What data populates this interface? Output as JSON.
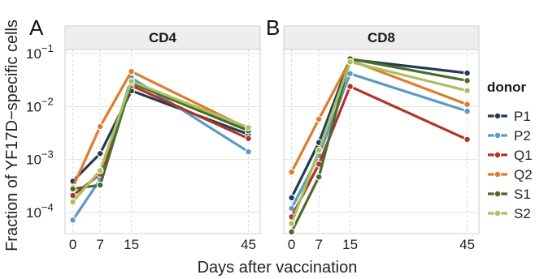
{
  "chart_data": {
    "type": "line",
    "ylabel": "Fraction of YF17D−specific cells",
    "xlabel": "Days after vaccination",
    "y_scale": "log10",
    "ylim": [
      4e-05,
      0.12
    ],
    "xlim": [
      -2,
      48
    ],
    "x_ticks": [
      0,
      7,
      15,
      45
    ],
    "y_ticks": [
      {
        "value": 0.0001,
        "base": "10",
        "exp": "−4"
      },
      {
        "value": 0.001,
        "base": "10",
        "exp": "−3"
      },
      {
        "value": 0.01,
        "base": "10",
        "exp": "−2"
      },
      {
        "value": 0.1,
        "base": "10",
        "exp": "−1"
      }
    ],
    "grid": true,
    "legend": {
      "title": "donor",
      "position": "right"
    },
    "series_colors": {
      "P1": "#243b55",
      "P2": "#5b9bc4",
      "Q1": "#b0342a",
      "Q2": "#e07b2c",
      "S1": "#4a6b2c",
      "S2": "#a8c060"
    },
    "series_order": [
      "P1",
      "P2",
      "Q1",
      "Q2",
      "S1",
      "S2"
    ],
    "panels": [
      {
        "letter": "A",
        "strip": "CD4",
        "series": [
          {
            "name": "P1",
            "x": [
              0,
              7,
              15,
              45
            ],
            "y": [
              0.00039,
              0.0013,
              0.02,
              0.003
            ]
          },
          {
            "name": "P2",
            "x": [
              0,
              7,
              15,
              45
            ],
            "y": [
              7.2e-05,
              0.00042,
              0.035,
              0.0014
            ]
          },
          {
            "name": "Q1",
            "x": [
              0,
              7,
              15,
              45
            ],
            "y": [
              0.00021,
              0.00053,
              0.025,
              0.0025
            ]
          },
          {
            "name": "Q2",
            "x": [
              0,
              7,
              15,
              45
            ],
            "y": [
              0.0003,
              0.0042,
              0.046,
              0.0038
            ]
          },
          {
            "name": "S1",
            "x": [
              0,
              7,
              15,
              45
            ],
            "y": [
              0.00028,
              0.00033,
              0.028,
              0.0035
            ]
          },
          {
            "name": "S2",
            "x": [
              0,
              7,
              15,
              45
            ],
            "y": [
              0.00016,
              0.00062,
              0.03,
              0.004
            ]
          }
        ]
      },
      {
        "letter": "B",
        "strip": "CD8",
        "series": [
          {
            "name": "P1",
            "x": [
              0,
              7,
              15,
              45
            ],
            "y": [
              0.00019,
              0.0021,
              0.078,
              0.043
            ]
          },
          {
            "name": "P2",
            "x": [
              0,
              7,
              15,
              45
            ],
            "y": [
              0.00012,
              0.0012,
              0.042,
              0.0082
            ]
          },
          {
            "name": "Q1",
            "x": [
              0,
              7,
              15,
              45
            ],
            "y": [
              8.3e-05,
              0.00082,
              0.024,
              0.0024
            ]
          },
          {
            "name": "Q2",
            "x": [
              0,
              7,
              15,
              45
            ],
            "y": [
              0.00058,
              0.0058,
              0.075,
              0.011
            ]
          },
          {
            "name": "S1",
            "x": [
              0,
              7,
              15,
              45
            ],
            "y": [
              4.3e-05,
              0.00047,
              0.08,
              0.031
            ]
          },
          {
            "name": "S2",
            "x": [
              0,
              7,
              15,
              45
            ],
            "y": [
              6.2e-05,
              0.0015,
              0.07,
              0.02
            ]
          }
        ]
      }
    ]
  }
}
